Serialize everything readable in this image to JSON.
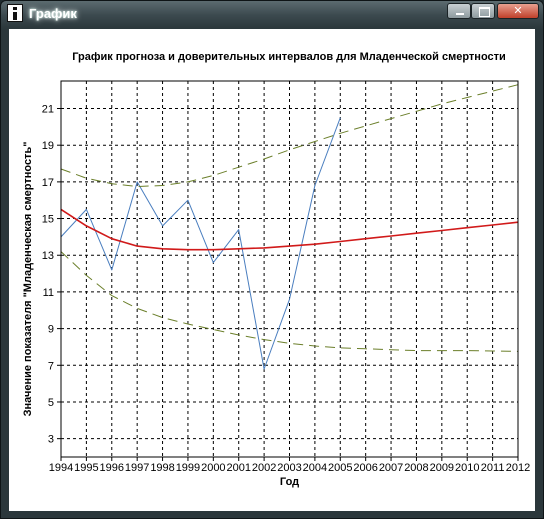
{
  "window": {
    "title": "График",
    "icon": "app-icon",
    "controls": [
      "minimize-icon",
      "maximize-icon",
      "close-icon"
    ]
  },
  "colors": {
    "observed": "#4a7ebf",
    "forecast": "#d11a1a",
    "confidence": "#6b7f2a",
    "grid": "#000000"
  },
  "chart_data": {
    "type": "line",
    "title": "График прогноза и доверительных интервалов для Младенческой смертности",
    "xlabel": "Год",
    "ylabel": "Значение показателя \"Младенческая смертность\"",
    "xlim": [
      1994,
      2012
    ],
    "ylim": [
      2,
      22.5
    ],
    "x_ticks": [
      1994,
      1995,
      1996,
      1997,
      1998,
      1999,
      2000,
      2001,
      2002,
      2003,
      2004,
      2005,
      2006,
      2007,
      2008,
      2009,
      2010,
      2011,
      2012
    ],
    "y_ticks": [
      3,
      5,
      7,
      9,
      11,
      13,
      15,
      17,
      19,
      21
    ],
    "grid": true,
    "series": [
      {
        "style": "solid-thin",
        "x": [
          1994,
          1995,
          1996,
          1997,
          1998,
          1999,
          2000,
          2001,
          2002,
          2003,
          2004,
          2005
        ],
        "y": [
          14.0,
          15.5,
          12.2,
          17.0,
          14.6,
          16.0,
          12.6,
          14.4,
          6.8,
          10.6,
          16.8,
          20.5
        ]
      },
      {
        "style": "solid-thick",
        "x": [
          1994,
          1995,
          1996,
          1997,
          1998,
          1999,
          2000,
          2001,
          2002,
          2003,
          2004,
          2005,
          2006,
          2007,
          2008,
          2009,
          2010,
          2011,
          2012
        ],
        "y": [
          15.5,
          14.6,
          13.9,
          13.5,
          13.35,
          13.3,
          13.3,
          13.35,
          13.4,
          13.5,
          13.6,
          13.75,
          13.9,
          14.05,
          14.2,
          14.35,
          14.5,
          14.65,
          14.8
        ]
      },
      {
        "style": "dashed",
        "x": [
          1994,
          1995,
          1996,
          1997,
          1998,
          1999,
          2000,
          2001,
          2002,
          2003,
          2004,
          2005,
          2006,
          2007,
          2008,
          2009,
          2010,
          2011,
          2012
        ],
        "y": [
          17.7,
          17.2,
          16.9,
          16.75,
          16.8,
          17.0,
          17.35,
          17.8,
          18.25,
          18.75,
          19.2,
          19.65,
          20.05,
          20.45,
          20.85,
          21.25,
          21.6,
          21.95,
          22.3
        ]
      },
      {
        "style": "dashed",
        "x": [
          1994,
          1995,
          1996,
          1997,
          1998,
          1999,
          2000,
          2001,
          2002,
          2003,
          2004,
          2005,
          2006,
          2007,
          2008,
          2009,
          2010,
          2011,
          2012
        ],
        "y": [
          13.2,
          11.9,
          10.8,
          10.1,
          9.6,
          9.25,
          8.95,
          8.65,
          8.4,
          8.2,
          8.05,
          7.95,
          7.9,
          7.85,
          7.8,
          7.8,
          7.8,
          7.78,
          7.76
        ]
      }
    ]
  }
}
